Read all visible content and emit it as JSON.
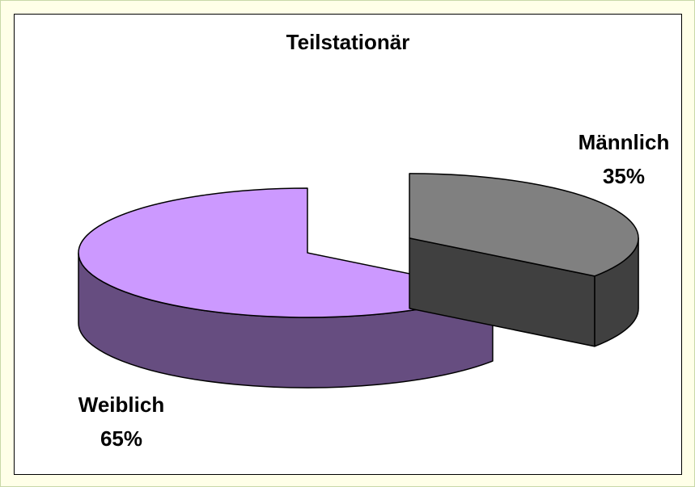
{
  "chart_data": {
    "type": "pie",
    "title": "Teilstationär",
    "categories": [
      "Männlich",
      "Weiblich"
    ],
    "values": [
      35,
      65
    ],
    "value_labels": [
      "35%",
      "65%"
    ],
    "colors": [
      "#808080",
      "#cc99ff"
    ]
  }
}
